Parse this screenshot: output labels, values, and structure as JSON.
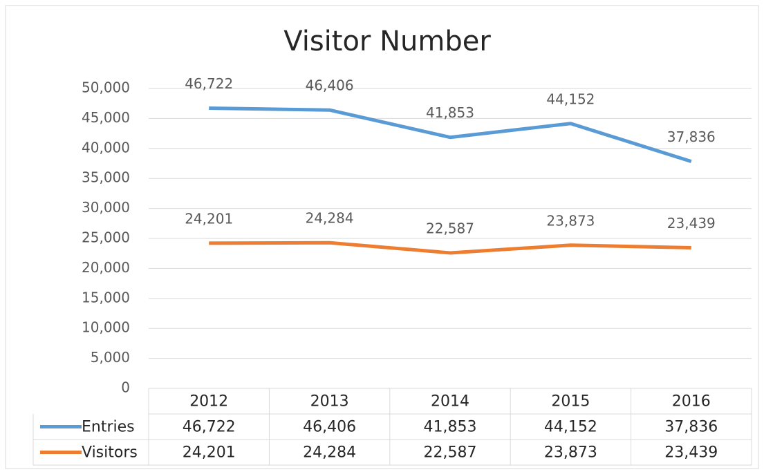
{
  "chart_data": {
    "type": "line",
    "title": "Visitor Number",
    "categories": [
      "2012",
      "2013",
      "2014",
      "2015",
      "2016"
    ],
    "series": [
      {
        "name": "Entries",
        "color": "#5b9bd5",
        "values": [
          46722,
          46406,
          41853,
          44152,
          37836
        ],
        "value_labels": [
          "46,722",
          "46,406",
          "41,853",
          "44,152",
          "37,836"
        ]
      },
      {
        "name": "Visitors",
        "color": "#ed7d31",
        "values": [
          24201,
          24284,
          22587,
          23873,
          23439
        ],
        "value_labels": [
          "24,201",
          "24,284",
          "22,587",
          "23,873",
          "23,439"
        ]
      }
    ],
    "ylim": [
      0,
      50000
    ],
    "yticks": [
      0,
      {
        "value": 5000,
        "label": "5,000"
      },
      {
        "value": 10000,
        "label": "10,000"
      },
      {
        "value": 15000,
        "label": "15,000"
      },
      {
        "value": 20000,
        "label": "20,000"
      },
      {
        "value": 25000,
        "label": "25,000"
      },
      {
        "value": 30000,
        "label": "30,000"
      },
      {
        "value": 35000,
        "label": "35,000"
      },
      {
        "value": 40000,
        "label": "40,000"
      },
      {
        "value": 45000,
        "label": "45,000"
      },
      {
        "value": 50000,
        "label": "50,000"
      }
    ],
    "grid": true,
    "data_table": true
  }
}
